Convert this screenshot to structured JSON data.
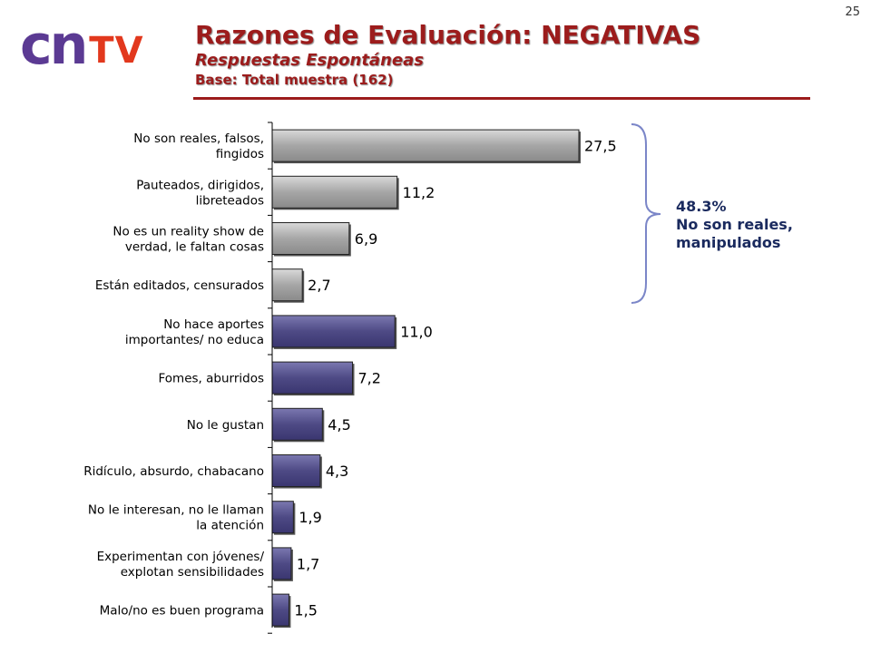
{
  "page_number": "25",
  "logo": {
    "part1": "cn",
    "part2": "TV"
  },
  "header": {
    "title": "Razones de Evaluación: NEGATIVAS",
    "subtitle": "Respuestas Espontáneas",
    "base": "Base: Total muestra (162)"
  },
  "annotation": {
    "percent": "48.3%",
    "line1": "No son reales,",
    "line2": "manipulados"
  },
  "colors": {
    "title": "#9c1c1c",
    "gray_bar": "#a8a8a8",
    "purple_bar": "#4e4a85",
    "annotation_text": "#1a2a5e",
    "bracket": "#7b86c8"
  },
  "chart_data": {
    "type": "bar",
    "orientation": "horizontal",
    "categories": [
      [
        "No son reales, falsos,",
        "fingidos"
      ],
      [
        "Pauteados, dirigidos,",
        "libreteados"
      ],
      [
        "No es un reality show de",
        "verdad, le faltan cosas"
      ],
      [
        "Están editados, censurados"
      ],
      [
        "No hace aportes",
        "importantes/ no educa"
      ],
      [
        "Fomes, aburridos"
      ],
      [
        "No le gustan"
      ],
      [
        "Ridículo, absurdo, chabacano"
      ],
      [
        "No le interesan, no le llaman",
        "la atención"
      ],
      [
        "Experimentan con jóvenes/",
        "explotan sensibilidades"
      ],
      [
        "Malo/no es buen programa"
      ]
    ],
    "values": [
      27.5,
      11.2,
      6.9,
      2.7,
      11.0,
      7.2,
      4.5,
      4.3,
      1.9,
      1.7,
      1.5
    ],
    "value_labels": [
      "27,5",
      "11,2",
      "6,9",
      "2,7",
      "11,0",
      "7,2",
      "4,5",
      "4,3",
      "1,9",
      "1,7",
      "1,5"
    ],
    "bar_group": [
      "gray",
      "gray",
      "gray",
      "gray",
      "purple",
      "purple",
      "purple",
      "purple",
      "purple",
      "purple",
      "purple"
    ],
    "xlim": [
      0,
      30
    ],
    "grid": false
  }
}
